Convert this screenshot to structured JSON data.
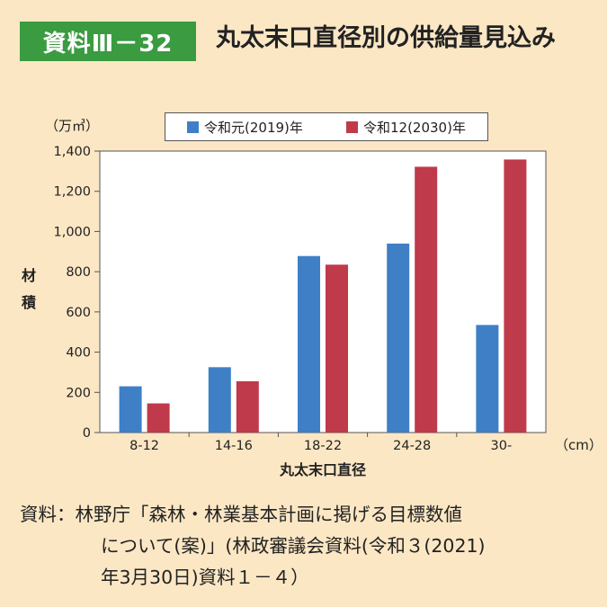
{
  "header": {
    "badge": "資料Ⅲ－32",
    "title": "丸太末口直径別の供給量見込み"
  },
  "colors": {
    "background": "#fbe7c4",
    "badge": "#3a9b40",
    "series_2019": "#3f7fc6",
    "series_2030": "#bf3a4a"
  },
  "chart_data": {
    "type": "bar",
    "title": "丸太末口直径別の供給量見込み",
    "xlabel": "丸太末口直径",
    "x_unit": "（cm）",
    "ylabel": "材積",
    "y_unit": "（万㎥）",
    "ylim": [
      0,
      1400
    ],
    "yticks": [
      0,
      200,
      400,
      600,
      800,
      1000,
      1200,
      1400
    ],
    "ytick_labels": [
      "0",
      "200",
      "400",
      "600",
      "800",
      "1,000",
      "1,200",
      "1,400"
    ],
    "categories": [
      "8-12",
      "14-16",
      "18-22",
      "24-28",
      "30-"
    ],
    "series": [
      {
        "name": "令和元(2019)年",
        "values": [
          230,
          325,
          878,
          940,
          535
        ]
      },
      {
        "name": "令和12(2030)年",
        "values": [
          145,
          255,
          835,
          1322,
          1358
        ]
      }
    ],
    "legend_position": "top"
  },
  "source": {
    "label": "資料：",
    "text_line1": "林野庁「森林・林業基本計画に掲げる目標数値",
    "text_line2": "について(案)」(林政審議会資料(令和３(2021)",
    "text_line3": "年3月30日)資料１－４）"
  }
}
